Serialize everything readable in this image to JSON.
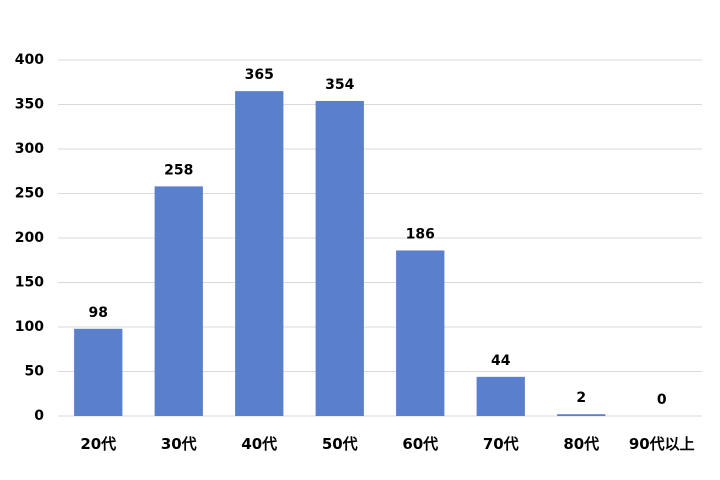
{
  "chart_data": {
    "type": "bar",
    "title": "",
    "xlabel": "",
    "ylabel": "",
    "categories": [
      "20代",
      "30代",
      "40代",
      "50代",
      "60代",
      "70代",
      "80代",
      "90代以上"
    ],
    "values": [
      98,
      258,
      365,
      354,
      186,
      44,
      2,
      0
    ],
    "ylim": [
      0,
      400
    ],
    "yticks": [
      0,
      50,
      100,
      150,
      200,
      250,
      300,
      350,
      400
    ],
    "grid": true,
    "legend": "none",
    "bar_color": "#5a7fcc",
    "data_labels": true
  }
}
